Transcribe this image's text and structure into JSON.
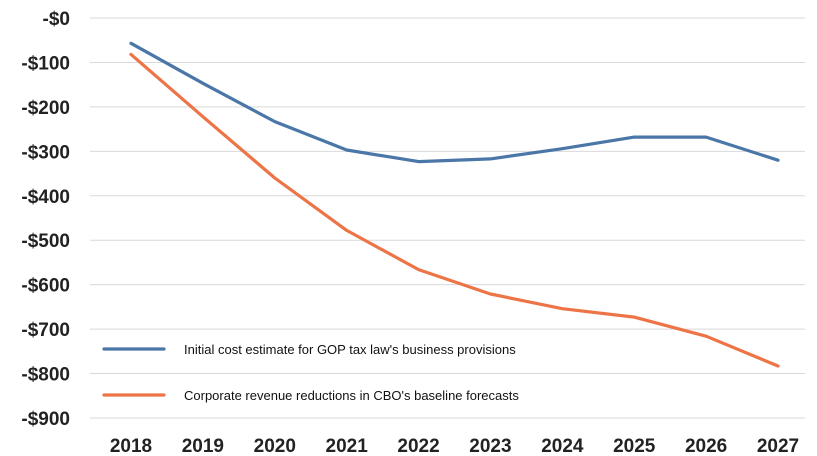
{
  "chart_data": {
    "type": "line",
    "title": "",
    "xlabel": "",
    "ylabel": "",
    "x": [
      "2018",
      "2019",
      "2020",
      "2021",
      "2022",
      "2023",
      "2024",
      "2025",
      "2026",
      "2027"
    ],
    "ylim": [
      -900,
      0
    ],
    "yticks": [
      0,
      -100,
      -200,
      -300,
      -400,
      -500,
      -600,
      -700,
      -800,
      -900
    ],
    "ytick_labels": [
      "-$0",
      "-$100",
      "-$200",
      "-$300",
      "-$400",
      "-$500",
      "-$600",
      "-$700",
      "-$800",
      "-$900"
    ],
    "grid": true,
    "legend_position": "bottom-left",
    "series": [
      {
        "name": "Initial cost estimate for GOP tax law's business provisions",
        "color": "#4a76a8",
        "values": [
          -57,
          -147,
          -233,
          -297,
          -323,
          -317,
          -294,
          -268,
          -268,
          -320
        ]
      },
      {
        "name": "Corporate revenue reductions in CBO's baseline forecasts",
        "color": "#ed7446",
        "values": [
          -82,
          -222,
          -360,
          -478,
          -566,
          -621,
          -654,
          -673,
          -716,
          -783
        ]
      }
    ]
  }
}
